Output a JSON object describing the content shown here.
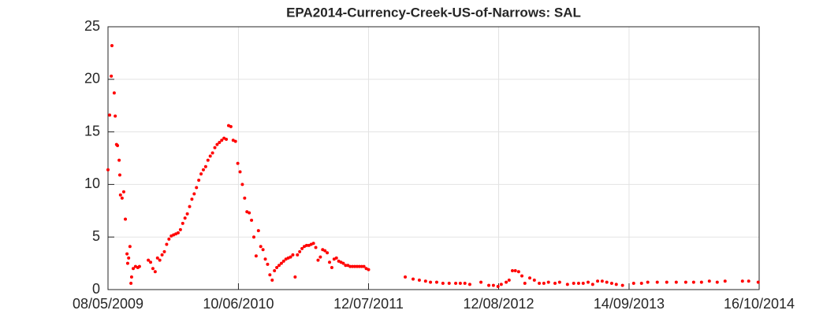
{
  "chart_data": {
    "type": "scatter",
    "title": "EPA2014-Currency-Creek-US-of-Narrows: SAL",
    "x": [
      "08/05/2009",
      "13/05/2009",
      "18/05/2009",
      "20/05/2009",
      "27/05/2009",
      "30/05/2009",
      "03/06/2009",
      "06/06/2009",
      "11/06/2009",
      "13/06/2009",
      "15/06/2009",
      "20/06/2009",
      "25/06/2009",
      "30/06/2009",
      "05/07/2009",
      "07/07/2009",
      "10/07/2009",
      "14/07/2009",
      "17/07/2009",
      "19/07/2009",
      "24/07/2009",
      "31/07/2009",
      "07/08/2009",
      "12/08/2009",
      "08/09/2009",
      "15/09/2009",
      "22/09/2009",
      "29/09/2009",
      "06/10/2009",
      "13/10/2009",
      "20/10/2009",
      "27/10/2009",
      "03/11/2009",
      "10/11/2009",
      "17/11/2009",
      "24/11/2009",
      "01/12/2009",
      "08/12/2009",
      "15/12/2009",
      "22/12/2009",
      "29/12/2009",
      "05/01/2010",
      "12/01/2010",
      "19/01/2010",
      "26/01/2010",
      "02/02/2010",
      "09/02/2010",
      "16/02/2010",
      "23/02/2010",
      "02/03/2010",
      "09/03/2010",
      "16/03/2010",
      "23/03/2010",
      "30/03/2010",
      "06/04/2010",
      "13/04/2010",
      "20/04/2010",
      "27/04/2010",
      "04/05/2010",
      "11/05/2010",
      "18/05/2010",
      "25/05/2010",
      "01/06/2010",
      "08/06/2010",
      "15/06/2010",
      "22/06/2010",
      "29/06/2010",
      "06/07/2010",
      "13/07/2010",
      "20/07/2010",
      "27/07/2010",
      "03/08/2010",
      "10/08/2010",
      "17/08/2010",
      "24/08/2010",
      "31/08/2010",
      "07/09/2010",
      "14/09/2010",
      "21/09/2010",
      "28/09/2010",
      "05/10/2010",
      "12/10/2010",
      "19/10/2010",
      "26/10/2010",
      "02/11/2010",
      "09/11/2010",
      "16/11/2010",
      "23/11/2010",
      "30/11/2010",
      "07/12/2010",
      "14/12/2010",
      "21/12/2010",
      "28/12/2010",
      "04/01/2011",
      "11/01/2011",
      "18/01/2011",
      "25/01/2011",
      "01/02/2011",
      "08/02/2011",
      "15/02/2011",
      "22/02/2011",
      "01/03/2011",
      "08/03/2011",
      "15/03/2011",
      "22/03/2011",
      "29/03/2011",
      "05/04/2011",
      "12/04/2011",
      "19/04/2011",
      "26/04/2011",
      "03/05/2011",
      "10/05/2011",
      "17/05/2011",
      "24/05/2011",
      "31/05/2011",
      "07/06/2011",
      "14/06/2011",
      "21/06/2011",
      "28/06/2011",
      "05/07/2011",
      "12/07/2011",
      "01/11/2011",
      "25/11/2011",
      "14/12/2011",
      "02/01/2012",
      "17/01/2012",
      "05/02/2012",
      "24/02/2012",
      "14/03/2012",
      "03/04/2012",
      "17/04/2012",
      "01/05/2012",
      "16/05/2012",
      "19/06/2012",
      "13/07/2012",
      "27/07/2012",
      "10/08/2012",
      "20/08/2012",
      "04/09/2012",
      "13/09/2012",
      "23/09/2012",
      "02/10/2012",
      "12/10/2012",
      "22/10/2012",
      "31/10/2012",
      "15/11/2012",
      "29/11/2012",
      "14/12/2012",
      "28/12/2012",
      "11/01/2013",
      "31/01/2013",
      "14/02/2013",
      "10/03/2013",
      "29/03/2013",
      "13/04/2013",
      "27/04/2013",
      "12/05/2013",
      "26/05/2013",
      "10/06/2013",
      "24/06/2013",
      "08/07/2013",
      "23/07/2013",
      "06/08/2013",
      "25/08/2013",
      "28/09/2013",
      "22/10/2013",
      "10/11/2013",
      "09/12/2013",
      "07/01/2014",
      "05/02/2014",
      "06/03/2014",
      "30/03/2014",
      "23/04/2014",
      "17/05/2014",
      "10/06/2014",
      "04/07/2014",
      "26/08/2014",
      "14/09/2014",
      "13/10/2014"
    ],
    "values": [
      11.4,
      16.6,
      20.3,
      23.2,
      18.7,
      16.5,
      13.8,
      13.7,
      12.3,
      10.9,
      9.0,
      8.7,
      9.3,
      6.7,
      3.4,
      2.5,
      3.0,
      4.1,
      0.6,
      1.2,
      2.0,
      2.2,
      2.1,
      2.2,
      2.8,
      2.6,
      2.0,
      1.7,
      3.0,
      2.8,
      3.3,
      3.6,
      4.3,
      4.8,
      5.1,
      5.2,
      5.3,
      5.4,
      5.7,
      6.3,
      6.8,
      7.2,
      7.9,
      8.6,
      9.1,
      9.7,
      10.4,
      11.0,
      11.4,
      11.7,
      12.3,
      12.7,
      13.0,
      13.5,
      13.8,
      14.0,
      14.2,
      14.4,
      14.3,
      15.6,
      15.5,
      14.2,
      14.1,
      12.0,
      11.2,
      10.0,
      8.7,
      7.4,
      7.3,
      6.6,
      5.0,
      3.2,
      5.6,
      4.1,
      3.8,
      2.9,
      2.4,
      1.4,
      0.9,
      1.8,
      2.1,
      2.3,
      2.5,
      2.7,
      2.9,
      3.0,
      3.1,
      3.3,
      1.2,
      3.3,
      3.6,
      3.9,
      4.1,
      4.2,
      4.2,
      4.3,
      4.4,
      4.0,
      2.8,
      3.1,
      3.8,
      3.7,
      3.5,
      2.6,
      2.1,
      2.9,
      3.0,
      2.7,
      2.6,
      2.5,
      2.3,
      2.3,
      2.2,
      2.2,
      2.2,
      2.2,
      2.2,
      2.2,
      2.2,
      2.0,
      1.9,
      1.2,
      1.0,
      0.9,
      0.8,
      0.7,
      0.7,
      0.6,
      0.6,
      0.6,
      0.6,
      0.6,
      0.5,
      0.7,
      0.4,
      0.4,
      0.3,
      0.5,
      0.7,
      0.9,
      1.8,
      1.8,
      1.7,
      1.3,
      0.6,
      1.1,
      0.9,
      0.6,
      0.6,
      0.7,
      0.6,
      0.7,
      0.5,
      0.6,
      0.6,
      0.6,
      0.7,
      0.5,
      0.8,
      0.8,
      0.7,
      0.6,
      0.5,
      0.4,
      0.6,
      0.6,
      0.7,
      0.7,
      0.7,
      0.7,
      0.7,
      0.7,
      0.7,
      0.8,
      0.7,
      0.8,
      0.8,
      0.8,
      0.7
    ],
    "color": "#ff0000",
    "xlim": [
      "08/05/2009",
      "16/10/2014"
    ],
    "xticks": [
      "08/05/2009",
      "10/06/2010",
      "12/07/2011",
      "12/08/2012",
      "14/09/2013",
      "16/10/2014"
    ],
    "ylim": [
      0,
      25
    ],
    "yticks": [
      0,
      5,
      10,
      15,
      20,
      25
    ],
    "grid": true
  }
}
